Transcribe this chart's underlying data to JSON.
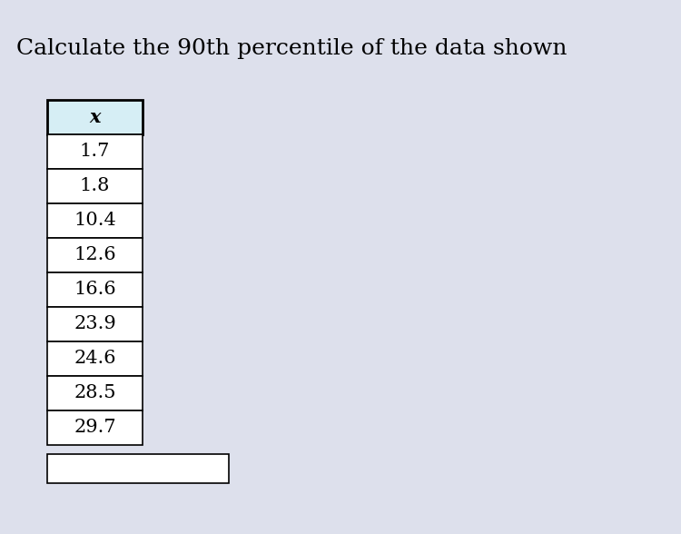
{
  "title": "Calculate the 90th percentile of the data shown",
  "title_fontsize": 18,
  "background_color": "#dde0ec",
  "header": "x",
  "header_bg": "#d6eef5",
  "values": [
    "1.7",
    "1.8",
    "10.4",
    "12.6",
    "16.6",
    "23.9",
    "24.6",
    "28.5",
    "29.7"
  ],
  "cell_bg": "#ffffff",
  "border_color": "#000000",
  "text_color": "#000000",
  "font_family": "DejaVu Serif",
  "data_fontsize": 15,
  "header_fontsize": 15
}
